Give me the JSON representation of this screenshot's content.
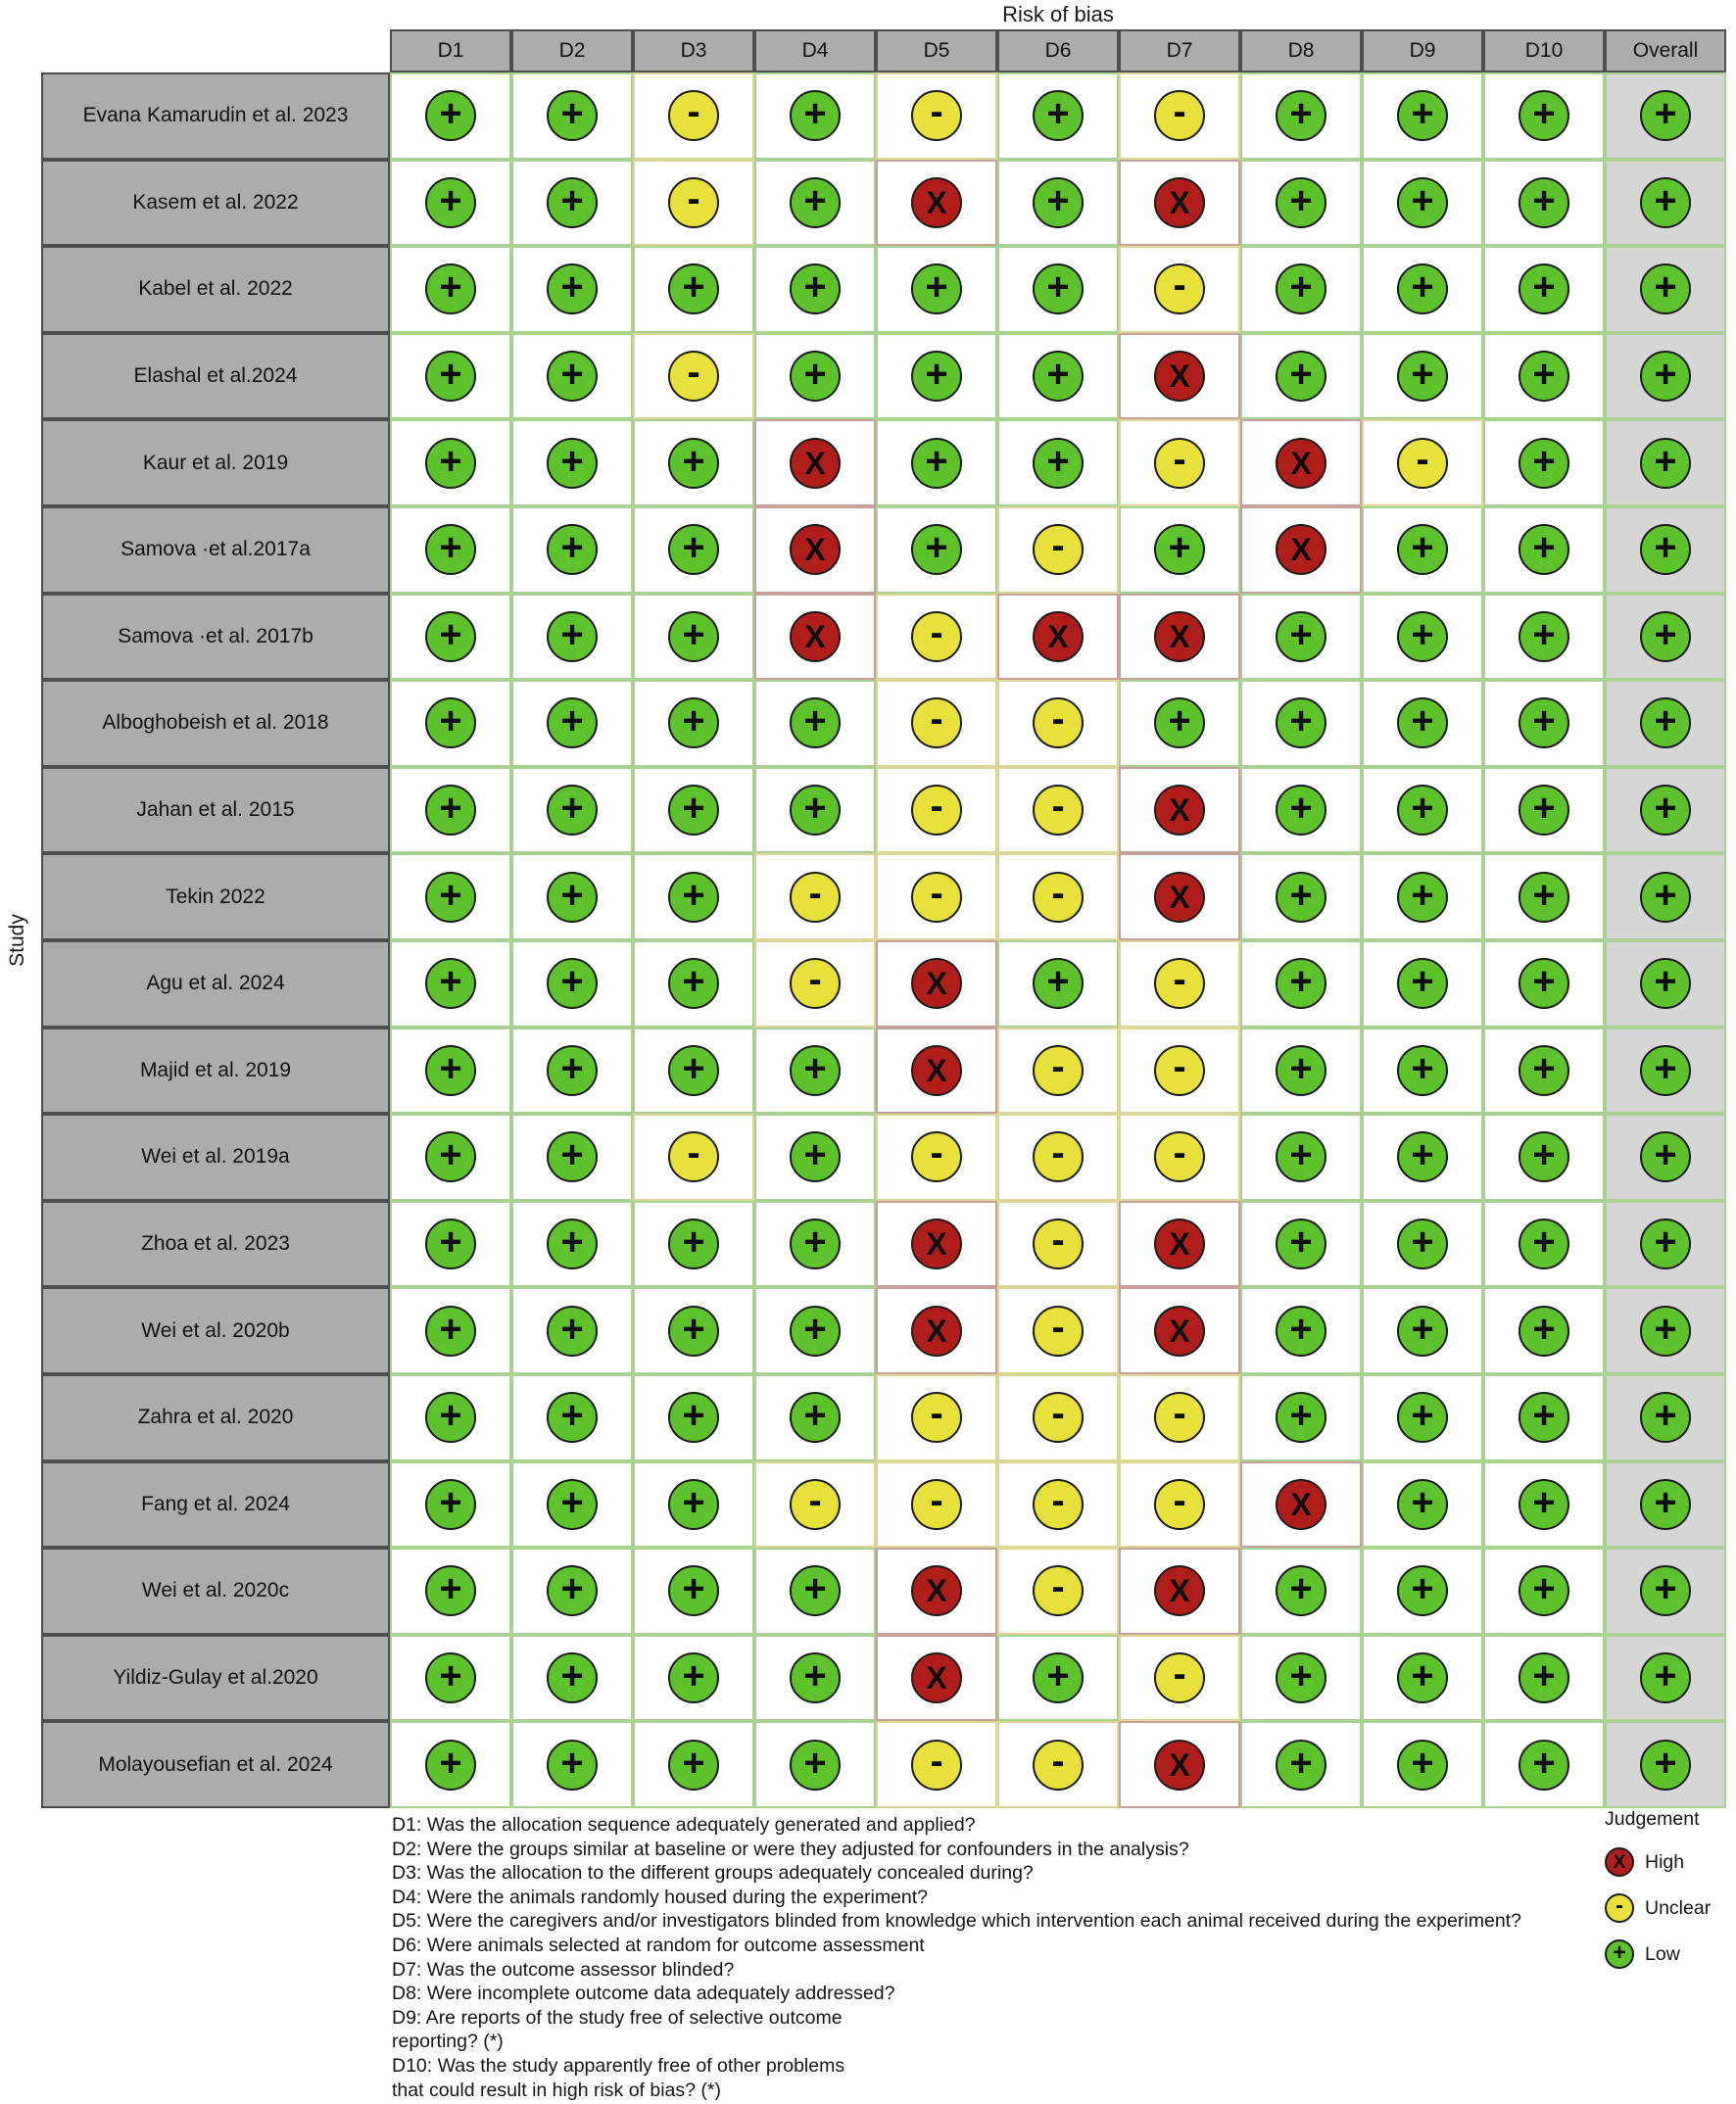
{
  "chart_data": {
    "type": "heatmap",
    "subtype": "risk-of-bias-traffic-light-plot",
    "title": "Risk of bias",
    "y_label": "Study",
    "x_categories": [
      "D1",
      "D2",
      "D3",
      "D4",
      "D5",
      "D6",
      "D7",
      "D8",
      "D9",
      "D10",
      "Overall"
    ],
    "symbols": {
      "low": "+",
      "unclear": "-",
      "high": "X"
    },
    "colors": {
      "low": "#5ec22d",
      "unclear": "#e9e13b",
      "high": "#b01e1c"
    },
    "rows": [
      {
        "study": "Evana Kamarudin et al. 2023",
        "judgements": [
          "low",
          "low",
          "unclear",
          "low",
          "unclear",
          "low",
          "unclear",
          "low",
          "low",
          "low",
          "low"
        ]
      },
      {
        "study": "Kasem et al. 2022",
        "judgements": [
          "low",
          "low",
          "unclear",
          "low",
          "high",
          "low",
          "high",
          "low",
          "low",
          "low",
          "low"
        ]
      },
      {
        "study": "Kabel et al. 2022",
        "judgements": [
          "low",
          "low",
          "low",
          "low",
          "low",
          "low",
          "unclear",
          "low",
          "low",
          "low",
          "low"
        ]
      },
      {
        "study": "Elashal et al.2024",
        "judgements": [
          "low",
          "low",
          "unclear",
          "low",
          "low",
          "low",
          "high",
          "low",
          "low",
          "low",
          "low"
        ]
      },
      {
        "study": "Kaur et al. 2019",
        "judgements": [
          "low",
          "low",
          "low",
          "high",
          "low",
          "low",
          "unclear",
          "high",
          "unclear",
          "low",
          "low"
        ]
      },
      {
        "study": "Samova ·et al.2017a",
        "judgements": [
          "low",
          "low",
          "low",
          "high",
          "low",
          "unclear",
          "low",
          "high",
          "low",
          "low",
          "low"
        ]
      },
      {
        "study": "Samova ·et al. 2017b",
        "judgements": [
          "low",
          "low",
          "low",
          "high",
          "unclear",
          "high",
          "high",
          "low",
          "low",
          "low",
          "low"
        ]
      },
      {
        "study": "Alboghobeish et al. 2018",
        "judgements": [
          "low",
          "low",
          "low",
          "low",
          "unclear",
          "unclear",
          "low",
          "low",
          "low",
          "low",
          "low"
        ]
      },
      {
        "study": "Jahan et al. 2015",
        "judgements": [
          "low",
          "low",
          "low",
          "low",
          "unclear",
          "unclear",
          "high",
          "low",
          "low",
          "low",
          "low"
        ]
      },
      {
        "study": "Tekin 2022",
        "judgements": [
          "low",
          "low",
          "low",
          "unclear",
          "unclear",
          "unclear",
          "high",
          "low",
          "low",
          "low",
          "low"
        ]
      },
      {
        "study": "Agu et al. 2024",
        "judgements": [
          "low",
          "low",
          "low",
          "unclear",
          "high",
          "low",
          "unclear",
          "low",
          "low",
          "low",
          "low"
        ]
      },
      {
        "study": "Majid et al. 2019",
        "judgements": [
          "low",
          "low",
          "low",
          "low",
          "high",
          "unclear",
          "unclear",
          "low",
          "low",
          "low",
          "low"
        ]
      },
      {
        "study": "Wei et al. 2019a",
        "judgements": [
          "low",
          "low",
          "unclear",
          "low",
          "unclear",
          "unclear",
          "unclear",
          "low",
          "low",
          "low",
          "low"
        ]
      },
      {
        "study": "Zhoa et al. 2023",
        "judgements": [
          "low",
          "low",
          "low",
          "low",
          "high",
          "unclear",
          "high",
          "low",
          "low",
          "low",
          "low"
        ]
      },
      {
        "study": "Wei et al. 2020b",
        "judgements": [
          "low",
          "low",
          "low",
          "low",
          "high",
          "unclear",
          "high",
          "low",
          "low",
          "low",
          "low"
        ]
      },
      {
        "study": "Zahra et al. 2020",
        "judgements": [
          "low",
          "low",
          "low",
          "low",
          "unclear",
          "unclear",
          "unclear",
          "low",
          "low",
          "low",
          "low"
        ]
      },
      {
        "study": "Fang et al. 2024",
        "judgements": [
          "low",
          "low",
          "low",
          "unclear",
          "unclear",
          "unclear",
          "unclear",
          "high",
          "low",
          "low",
          "low"
        ]
      },
      {
        "study": "Wei et al. 2020c",
        "judgements": [
          "low",
          "low",
          "low",
          "low",
          "high",
          "unclear",
          "high",
          "low",
          "low",
          "low",
          "low"
        ]
      },
      {
        "study": "Yildiz-Gulay et al.2020",
        "judgements": [
          "low",
          "low",
          "low",
          "low",
          "high",
          "low",
          "unclear",
          "low",
          "low",
          "low",
          "low"
        ]
      },
      {
        "study": "Molayousefian et al. 2024",
        "judgements": [
          "low",
          "low",
          "low",
          "low",
          "unclear",
          "unclear",
          "high",
          "low",
          "low",
          "low",
          "low"
        ]
      }
    ],
    "legend": {
      "title": "Judgement",
      "entries": [
        {
          "label": "High",
          "value": "high"
        },
        {
          "label": "Unclear",
          "value": "unclear"
        },
        {
          "label": "Low",
          "value": "low"
        }
      ]
    },
    "footnotes": [
      "D1: Was the allocation sequence adequately generated and applied?",
      "D2: Were the groups similar at baseline or were they adjusted for confounders in the analysis?",
      "D3: Was the allocation to the different groups adequately concealed during?",
      "D4: Were the animals randomly housed during the experiment?",
      "D5: Were the caregivers and/or investigators blinded from knowledge which intervention each animal received during the experiment?",
      "D6: Were animals selected at random for outcome assessment",
      "D7: Was the outcome assessor blinded?",
      "D8: Were incomplete outcome data adequately addressed?",
      "D9: Are reports of the study free of selective outcome",
      "reporting? (*)",
      "D10: Was the study apparently free of other problems",
      "that could result in high risk of bias? (*)"
    ]
  }
}
